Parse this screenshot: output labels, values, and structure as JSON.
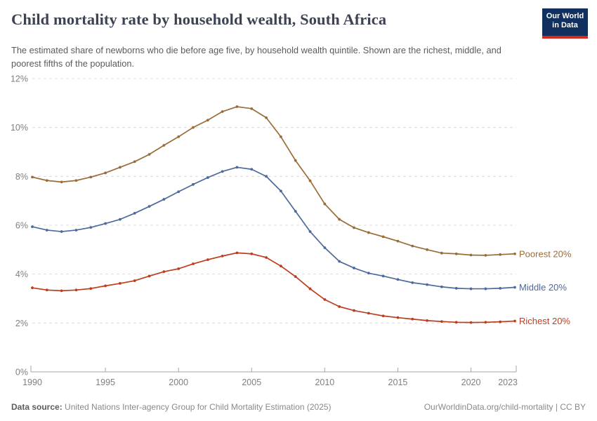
{
  "header": {
    "title": "Child mortality rate by household wealth, South Africa",
    "subtitle": "The estimated share of newborns who die before age five, by household wealth quintile. Shown are the richest, middle, and poorest fifths of the population.",
    "logo": {
      "line1": "Our World",
      "line2": "in Data",
      "bg_color": "#12305E",
      "stripe_color": "#D42B21"
    }
  },
  "chart_data": {
    "type": "line",
    "title": "Child mortality rate by household wealth, South Africa",
    "xlabel": "",
    "ylabel": "",
    "xlim": [
      1990,
      2023
    ],
    "ylim": [
      0,
      12
    ],
    "grid": true,
    "legend_position": "right-end-labels",
    "xticks": [
      1990,
      1995,
      2000,
      2005,
      2010,
      2015,
      2020,
      2023
    ],
    "yticks": [
      0,
      2,
      4,
      6,
      8,
      10,
      12
    ],
    "ytick_suffix": "%",
    "x": [
      1990,
      1991,
      1992,
      1993,
      1994,
      1995,
      1996,
      1997,
      1998,
      1999,
      2000,
      2001,
      2002,
      2003,
      2004,
      2005,
      2006,
      2007,
      2008,
      2009,
      2010,
      2011,
      2012,
      2013,
      2014,
      2015,
      2016,
      2017,
      2018,
      2019,
      2020,
      2021,
      2022,
      2023
    ],
    "series": [
      {
        "name": "Poorest 20%",
        "color": "#996D39",
        "values": [
          7.97,
          7.83,
          7.77,
          7.83,
          7.97,
          8.14,
          8.37,
          8.6,
          8.9,
          9.27,
          9.62,
          10.0,
          10.3,
          10.65,
          10.85,
          10.77,
          10.4,
          9.62,
          8.65,
          7.82,
          6.87,
          6.24,
          5.9,
          5.7,
          5.53,
          5.35,
          5.15,
          5.0,
          4.86,
          4.83,
          4.78,
          4.77,
          4.8,
          4.83
        ]
      },
      {
        "name": "Middle 20%",
        "color": "#4C6A9C",
        "values": [
          5.94,
          5.8,
          5.74,
          5.8,
          5.91,
          6.07,
          6.24,
          6.49,
          6.77,
          7.06,
          7.37,
          7.67,
          7.95,
          8.2,
          8.37,
          8.29,
          8.0,
          7.4,
          6.57,
          5.74,
          5.08,
          4.52,
          4.25,
          4.04,
          3.92,
          3.78,
          3.65,
          3.57,
          3.48,
          3.42,
          3.4,
          3.4,
          3.42,
          3.46
        ]
      },
      {
        "name": "Richest 20%",
        "color": "#BE3D1F",
        "values": [
          3.44,
          3.35,
          3.32,
          3.35,
          3.41,
          3.52,
          3.62,
          3.73,
          3.92,
          4.1,
          4.22,
          4.42,
          4.59,
          4.74,
          4.87,
          4.83,
          4.68,
          4.33,
          3.9,
          3.4,
          2.96,
          2.67,
          2.51,
          2.4,
          2.29,
          2.22,
          2.16,
          2.1,
          2.06,
          2.03,
          2.02,
          2.03,
          2.05,
          2.08
        ]
      }
    ]
  },
  "footer": {
    "source_label": "Data source:",
    "source_text": " United Nations Inter-agency Group for Child Mortality Estimation (2025)",
    "link": "OurWorldinData.org/child-mortality | CC BY"
  }
}
